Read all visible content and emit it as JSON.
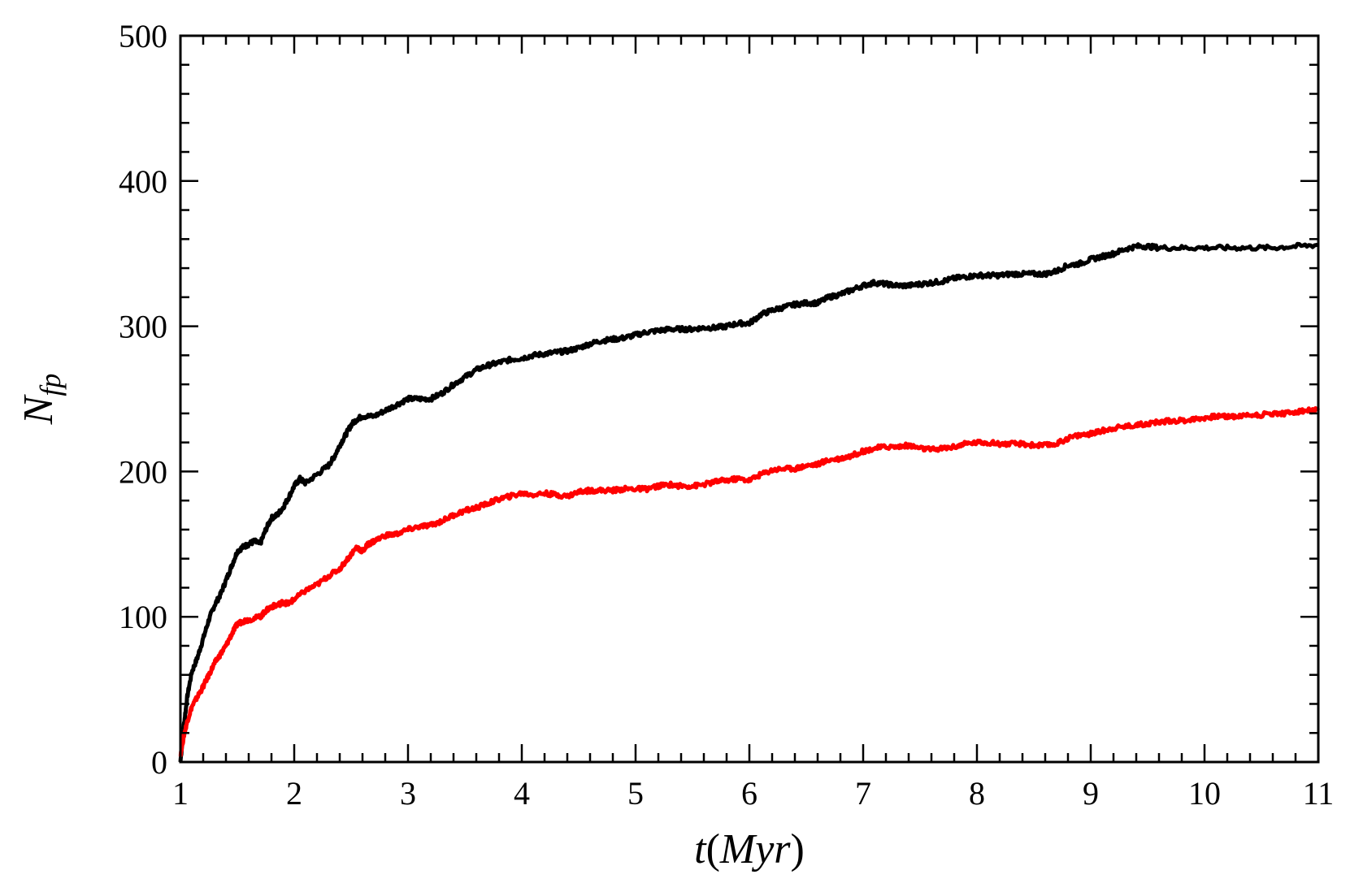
{
  "chart_data": {
    "type": "line",
    "title": "",
    "xlabel": {
      "main": "t",
      "unit": "Myr"
    },
    "ylabel": {
      "main": "N",
      "sub": "fp"
    },
    "xlim": [
      1,
      11
    ],
    "ylim": [
      0,
      500
    ],
    "xticks": [
      1,
      2,
      3,
      4,
      5,
      6,
      7,
      8,
      9,
      10,
      11
    ],
    "yticks": [
      0,
      100,
      200,
      300,
      400,
      500
    ],
    "x_minor_step": 0.2,
    "y_minor_step": 20,
    "grid": false,
    "legend": "none",
    "series": [
      {
        "color": "#000000",
        "points": [
          [
            1.0,
            0
          ],
          [
            1.03,
            25
          ],
          [
            1.06,
            45
          ],
          [
            1.1,
            62
          ],
          [
            1.15,
            72
          ],
          [
            1.2,
            85
          ],
          [
            1.25,
            98
          ],
          [
            1.3,
            108
          ],
          [
            1.35,
            115
          ],
          [
            1.4,
            125
          ],
          [
            1.45,
            135
          ],
          [
            1.5,
            145
          ],
          [
            1.55,
            148
          ],
          [
            1.6,
            150
          ],
          [
            1.65,
            152
          ],
          [
            1.7,
            150
          ],
          [
            1.75,
            160
          ],
          [
            1.8,
            168
          ],
          [
            1.85,
            170
          ],
          [
            1.9,
            175
          ],
          [
            1.95,
            182
          ],
          [
            2.0,
            190
          ],
          [
            2.05,
            195
          ],
          [
            2.1,
            192
          ],
          [
            2.2,
            198
          ],
          [
            2.3,
            204
          ],
          [
            2.35,
            210
          ],
          [
            2.4,
            218
          ],
          [
            2.45,
            225
          ],
          [
            2.5,
            232
          ],
          [
            2.55,
            236
          ],
          [
            2.6,
            238
          ],
          [
            2.7,
            238
          ],
          [
            2.8,
            242
          ],
          [
            2.9,
            246
          ],
          [
            3.0,
            250
          ],
          [
            3.1,
            250
          ],
          [
            3.2,
            250
          ],
          [
            3.3,
            254
          ],
          [
            3.4,
            260
          ],
          [
            3.5,
            265
          ],
          [
            3.6,
            270
          ],
          [
            3.7,
            273
          ],
          [
            3.8,
            275
          ],
          [
            3.9,
            277
          ],
          [
            4.0,
            278
          ],
          [
            4.1,
            280
          ],
          [
            4.2,
            281
          ],
          [
            4.3,
            282
          ],
          [
            4.4,
            283
          ],
          [
            4.5,
            285
          ],
          [
            4.6,
            288
          ],
          [
            4.7,
            290
          ],
          [
            4.8,
            291
          ],
          [
            4.9,
            292
          ],
          [
            5.0,
            294
          ],
          [
            5.1,
            296
          ],
          [
            5.2,
            297
          ],
          [
            5.3,
            298
          ],
          [
            5.4,
            298
          ],
          [
            5.5,
            298
          ],
          [
            5.6,
            299
          ],
          [
            5.7,
            299
          ],
          [
            5.8,
            300
          ],
          [
            5.9,
            302
          ],
          [
            6.0,
            302
          ],
          [
            6.1,
            308
          ],
          [
            6.2,
            311
          ],
          [
            6.3,
            313
          ],
          [
            6.4,
            315
          ],
          [
            6.5,
            316
          ],
          [
            6.6,
            316
          ],
          [
            6.7,
            320
          ],
          [
            6.8,
            322
          ],
          [
            6.9,
            325
          ],
          [
            7.0,
            328
          ],
          [
            7.1,
            330
          ],
          [
            7.2,
            329
          ],
          [
            7.3,
            328
          ],
          [
            7.4,
            328
          ],
          [
            7.5,
            329
          ],
          [
            7.6,
            330
          ],
          [
            7.7,
            331
          ],
          [
            7.8,
            333
          ],
          [
            7.9,
            334
          ],
          [
            8.0,
            335
          ],
          [
            8.1,
            335
          ],
          [
            8.2,
            335
          ],
          [
            8.3,
            336
          ],
          [
            8.4,
            336
          ],
          [
            8.5,
            336
          ],
          [
            8.6,
            336
          ],
          [
            8.7,
            338
          ],
          [
            8.8,
            342
          ],
          [
            8.9,
            343
          ],
          [
            9.0,
            346
          ],
          [
            9.1,
            348
          ],
          [
            9.2,
            350
          ],
          [
            9.3,
            353
          ],
          [
            9.4,
            355
          ],
          [
            9.5,
            355
          ],
          [
            9.6,
            354
          ],
          [
            9.8,
            354
          ],
          [
            10.0,
            354
          ],
          [
            10.2,
            354
          ],
          [
            10.4,
            354
          ],
          [
            10.6,
            354
          ],
          [
            10.8,
            355
          ],
          [
            11.0,
            356
          ]
        ]
      },
      {
        "color": "#ff0000",
        "points": [
          [
            1.0,
            5
          ],
          [
            1.03,
            18
          ],
          [
            1.06,
            28
          ],
          [
            1.1,
            38
          ],
          [
            1.15,
            45
          ],
          [
            1.2,
            52
          ],
          [
            1.25,
            60
          ],
          [
            1.3,
            68
          ],
          [
            1.35,
            74
          ],
          [
            1.4,
            80
          ],
          [
            1.45,
            88
          ],
          [
            1.5,
            95
          ],
          [
            1.55,
            97
          ],
          [
            1.6,
            98
          ],
          [
            1.7,
            100
          ],
          [
            1.75,
            104
          ],
          [
            1.8,
            107
          ],
          [
            1.85,
            108
          ],
          [
            1.9,
            110
          ],
          [
            1.95,
            109
          ],
          [
            2.0,
            112
          ],
          [
            2.1,
            118
          ],
          [
            2.2,
            122
          ],
          [
            2.3,
            128
          ],
          [
            2.4,
            133
          ],
          [
            2.5,
            143
          ],
          [
            2.55,
            148
          ],
          [
            2.6,
            145
          ],
          [
            2.65,
            150
          ],
          [
            2.7,
            152
          ],
          [
            2.8,
            156
          ],
          [
            2.9,
            157
          ],
          [
            3.0,
            160
          ],
          [
            3.1,
            162
          ],
          [
            3.2,
            163
          ],
          [
            3.3,
            166
          ],
          [
            3.4,
            170
          ],
          [
            3.5,
            173
          ],
          [
            3.6,
            175
          ],
          [
            3.7,
            178
          ],
          [
            3.8,
            181
          ],
          [
            3.9,
            183
          ],
          [
            4.0,
            185
          ],
          [
            4.1,
            184
          ],
          [
            4.2,
            185
          ],
          [
            4.3,
            184
          ],
          [
            4.4,
            183
          ],
          [
            4.5,
            186
          ],
          [
            4.6,
            187
          ],
          [
            4.7,
            187
          ],
          [
            4.8,
            187
          ],
          [
            4.9,
            188
          ],
          [
            5.0,
            188
          ],
          [
            5.1,
            188
          ],
          [
            5.2,
            190
          ],
          [
            5.3,
            191
          ],
          [
            5.4,
            190
          ],
          [
            5.5,
            190
          ],
          [
            5.6,
            191
          ],
          [
            5.7,
            193
          ],
          [
            5.8,
            194
          ],
          [
            5.9,
            195
          ],
          [
            6.0,
            194
          ],
          [
            6.1,
            198
          ],
          [
            6.2,
            201
          ],
          [
            6.3,
            202
          ],
          [
            6.4,
            202
          ],
          [
            6.5,
            204
          ],
          [
            6.6,
            205
          ],
          [
            6.7,
            208
          ],
          [
            6.8,
            209
          ],
          [
            6.9,
            211
          ],
          [
            7.0,
            214
          ],
          [
            7.1,
            216
          ],
          [
            7.2,
            217
          ],
          [
            7.3,
            217
          ],
          [
            7.4,
            218
          ],
          [
            7.5,
            216
          ],
          [
            7.6,
            215
          ],
          [
            7.7,
            216
          ],
          [
            7.8,
            217
          ],
          [
            7.9,
            219
          ],
          [
            8.0,
            220
          ],
          [
            8.1,
            220
          ],
          [
            8.2,
            219
          ],
          [
            8.3,
            219
          ],
          [
            8.4,
            219
          ],
          [
            8.5,
            218
          ],
          [
            8.6,
            218
          ],
          [
            8.7,
            219
          ],
          [
            8.8,
            223
          ],
          [
            8.9,
            225
          ],
          [
            9.0,
            226
          ],
          [
            9.1,
            228
          ],
          [
            9.2,
            230
          ],
          [
            9.3,
            231
          ],
          [
            9.4,
            232
          ],
          [
            9.5,
            233
          ],
          [
            9.6,
            234
          ],
          [
            9.7,
            235
          ],
          [
            9.8,
            235
          ],
          [
            9.9,
            236
          ],
          [
            10.0,
            237
          ],
          [
            10.1,
            238
          ],
          [
            10.2,
            238
          ],
          [
            10.3,
            238
          ],
          [
            10.4,
            239
          ],
          [
            10.5,
            239
          ],
          [
            10.6,
            240
          ],
          [
            10.7,
            240
          ],
          [
            10.8,
            241
          ],
          [
            10.9,
            242
          ],
          [
            11.0,
            242
          ]
        ]
      }
    ]
  }
}
